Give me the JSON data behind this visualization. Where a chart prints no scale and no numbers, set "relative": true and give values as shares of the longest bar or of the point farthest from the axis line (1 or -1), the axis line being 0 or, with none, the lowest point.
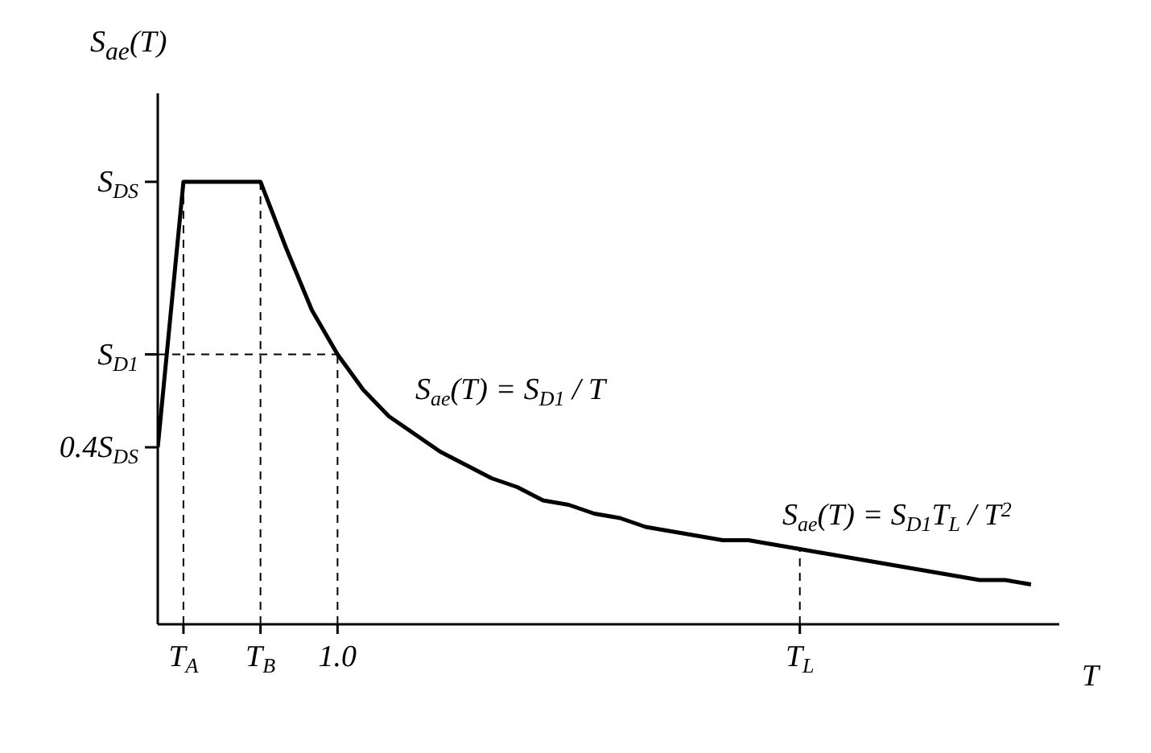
{
  "chart_data": {
    "type": "line",
    "ylabel": "S$_{ae}$(T)",
    "xlabel": "T",
    "relative": true,
    "categories": [
      null,
      "T$_{A}$",
      null,
      null,
      "T$_{B}$",
      null,
      null,
      "1.0",
      null,
      null,
      null,
      null,
      null,
      null,
      null,
      null,
      null,
      null,
      null,
      null,
      null,
      null,
      null,
      null,
      null,
      "T$_{L}$",
      null,
      null,
      null,
      null,
      null,
      null,
      null,
      null,
      null
    ],
    "series": [
      {
        "color": "#000000",
        "values": [
          0.4,
          1,
          1,
          1,
          1,
          0.85,
          0.71,
          0.61,
          0.53,
          0.47,
          0.43,
          0.39,
          0.36,
          0.33,
          0.31,
          0.28,
          0.27,
          0.25,
          0.24,
          0.22,
          0.21,
          0.2,
          0.19,
          0.19,
          0.18,
          0.17,
          0.16,
          0.15,
          0.14,
          0.13,
          0.12,
          0.11,
          0.1,
          0.1,
          0.09
        ]
      }
    ],
    "ref_lines": [
      {
        "axis": "x",
        "value": "T$_{A}$",
        "color": "#000000",
        "line_style": "dashed"
      },
      {
        "axis": "x",
        "value": "T$_{B}$",
        "color": "#000000",
        "line_style": "dashed"
      },
      {
        "axis": "x",
        "value": "1.0",
        "color": "#000000",
        "line_style": "dashed"
      },
      {
        "axis": "x",
        "value": "T$_{L}$",
        "color": "#000000",
        "line_style": "dashed"
      },
      {
        "axis": "y",
        "value": 1,
        "label": "S$_{DS}$"
      },
      {
        "axis": "y",
        "value": 0.61,
        "label": "S$_{D1}$",
        "color": "#000000",
        "line_style": "dashed"
      },
      {
        "axis": "y",
        "value": 0.4,
        "label": "0.4S$_{DS}$"
      }
    ],
    "annotations": [
      "S$_{ae}$(T) = S$_{D1}$ / T",
      "S$_{ae}$(T) = S$_{D1}$T$_{L}$ / T$^{2}$"
    ],
    "grid": false,
    "legend": false,
    "marker": "none",
    "line_style": "solid"
  }
}
